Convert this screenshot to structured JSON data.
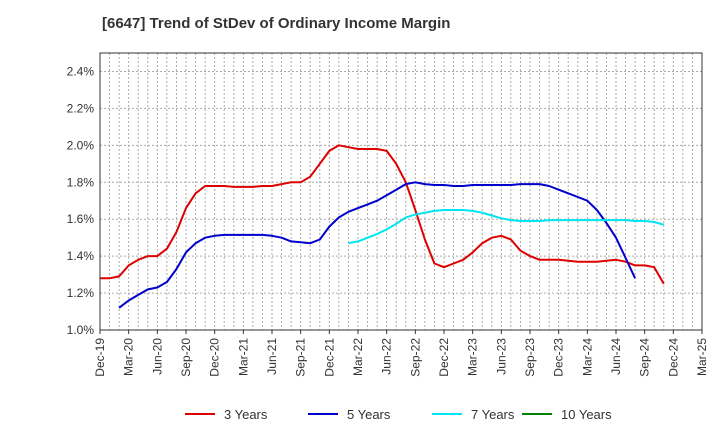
{
  "chart_data": {
    "type": "line",
    "title": "[6647]  Trend of StDev of Ordinary Income Margin",
    "xlabel": "",
    "ylabel": "",
    "ylim": [
      1.0,
      2.5
    ],
    "y_ticks": [
      1.0,
      1.2,
      1.4,
      1.6,
      1.8,
      2.0,
      2.2,
      2.4
    ],
    "y_tick_labels": [
      "1.0%",
      "1.2%",
      "1.4%",
      "1.6%",
      "1.8%",
      "2.0%",
      "2.2%",
      "2.4%"
    ],
    "x_tick_labels": [
      "Dec-19",
      "Mar-20",
      "Jun-20",
      "Sep-20",
      "Dec-20",
      "Mar-21",
      "Jun-21",
      "Sep-21",
      "Dec-21",
      "Mar-22",
      "Jun-22",
      "Sep-22",
      "Dec-22",
      "Mar-23",
      "Jun-23",
      "Sep-23",
      "Dec-23",
      "Mar-24",
      "Jun-24",
      "Sep-24",
      "Dec-24",
      "Mar-25"
    ],
    "grid": true,
    "legend_position": "bottom",
    "series": [
      {
        "name": "3 Years",
        "color": "#dd0000",
        "start_month": 0,
        "values": [
          1.28,
          1.28,
          1.29,
          1.35,
          1.38,
          1.4,
          1.4,
          1.44,
          1.53,
          1.66,
          1.74,
          1.78,
          1.78,
          1.78,
          1.775,
          1.775,
          1.775,
          1.78,
          1.78,
          1.79,
          1.8,
          1.8,
          1.83,
          1.9,
          1.97,
          2.0,
          1.99,
          1.98,
          1.98,
          1.98,
          1.97,
          1.9,
          1.8,
          1.65,
          1.49,
          1.36,
          1.34,
          1.36,
          1.38,
          1.42,
          1.47,
          1.5,
          1.51,
          1.49,
          1.43,
          1.4,
          1.38,
          1.38,
          1.38,
          1.375,
          1.37,
          1.37,
          1.37,
          1.375,
          1.38,
          1.37,
          1.35,
          1.35,
          1.34,
          1.25
        ]
      },
      {
        "name": "5 Years",
        "color": "#0000cc",
        "start_month": 2,
        "values": [
          1.12,
          1.16,
          1.19,
          1.22,
          1.23,
          1.26,
          1.33,
          1.42,
          1.47,
          1.5,
          1.51,
          1.515,
          1.515,
          1.515,
          1.515,
          1.515,
          1.51,
          1.5,
          1.48,
          1.475,
          1.47,
          1.49,
          1.56,
          1.61,
          1.64,
          1.66,
          1.68,
          1.7,
          1.73,
          1.76,
          1.79,
          1.8,
          1.79,
          1.785,
          1.785,
          1.78,
          1.78,
          1.785,
          1.785,
          1.785,
          1.785,
          1.785,
          1.79,
          1.79,
          1.79,
          1.78,
          1.76,
          1.74,
          1.72,
          1.7,
          1.65,
          1.58,
          1.5,
          1.39,
          1.28
        ]
      },
      {
        "name": "7 Years",
        "color": "#00e5ee",
        "start_month": 26,
        "values": [
          1.47,
          1.48,
          1.5,
          1.52,
          1.545,
          1.575,
          1.61,
          1.625,
          1.635,
          1.645,
          1.65,
          1.65,
          1.65,
          1.645,
          1.635,
          1.62,
          1.605,
          1.595,
          1.59,
          1.59,
          1.59,
          1.595,
          1.595,
          1.595,
          1.595,
          1.595,
          1.595,
          1.595,
          1.595,
          1.595,
          1.59,
          1.59,
          1.585,
          1.57
        ]
      },
      {
        "name": "10 Years",
        "color": "#008000",
        "start_month": 0,
        "values": []
      }
    ]
  }
}
